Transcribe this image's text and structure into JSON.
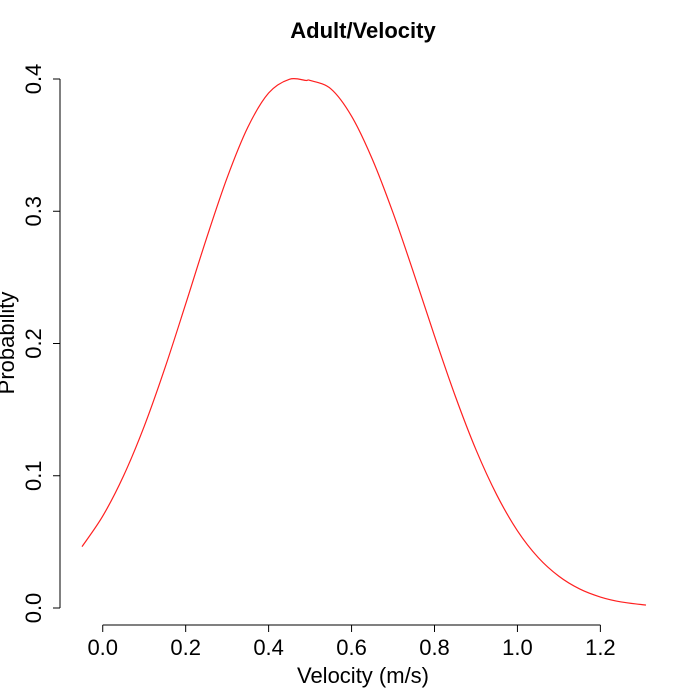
{
  "chart_data": {
    "type": "line",
    "title": "Adult/Velocity",
    "xlabel": "Velocity (m/s)",
    "ylabel": "Probability",
    "x_ticks": [
      "0.0",
      "0.2",
      "0.4",
      "0.6",
      "0.8",
      "1.0",
      "1.2"
    ],
    "y_ticks": [
      "0.0",
      "0.1",
      "0.2",
      "0.3",
      "0.4"
    ],
    "xlim": [
      -0.05,
      1.31
    ],
    "ylim": [
      0,
      0.4
    ],
    "grid": false,
    "series": [
      {
        "color": "#ff2020",
        "x": [
          -0.05,
          0.0,
          0.05,
          0.1,
          0.15,
          0.2,
          0.25,
          0.3,
          0.35,
          0.4,
          0.45,
          0.49,
          0.5,
          0.55,
          0.6,
          0.65,
          0.7,
          0.75,
          0.8,
          0.85,
          0.9,
          0.95,
          1.0,
          1.05,
          1.1,
          1.15,
          1.2,
          1.25,
          1.31
        ],
        "y": [
          0.0464,
          0.0695,
          0.0998,
          0.1374,
          0.1815,
          0.2299,
          0.2793,
          0.3254,
          0.3636,
          0.3894,
          0.3998,
          0.3989,
          0.3989,
          0.3926,
          0.3719,
          0.3394,
          0.2988,
          0.2531,
          0.2057,
          0.1603,
          0.1197,
          0.0856,
          0.0584,
          0.0382,
          0.024,
          0.0144,
          0.0083,
          0.0046,
          0.0022
        ]
      }
    ]
  }
}
